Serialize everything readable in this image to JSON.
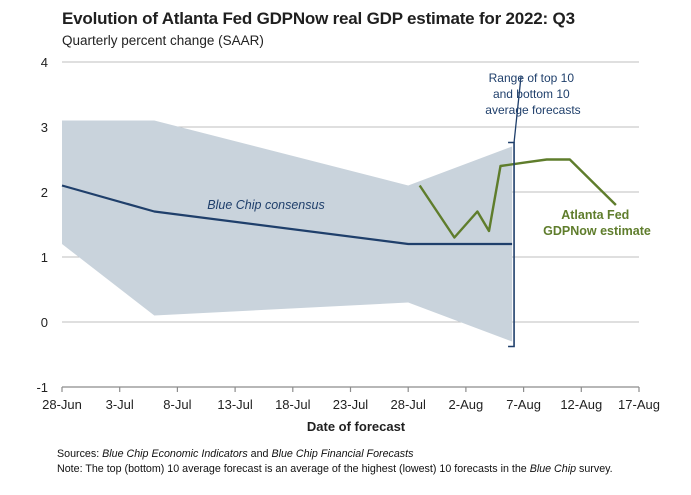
{
  "chart_data": {
    "type": "line",
    "title": "Evolution of Atlanta Fed GDPNow real GDP estimate for 2022: Q3",
    "subtitle": "Quarterly percent change (SAAR)",
    "xlabel": "Date of forecast",
    "ylabel": "",
    "ylim": [
      -1,
      4
    ],
    "yticks": [
      "4",
      "3",
      "2",
      "1",
      "0",
      "-1"
    ],
    "xlim": [
      0,
      50
    ],
    "xticks": [
      {
        "label": "28-Jun",
        "day": 0
      },
      {
        "label": "3-Jul",
        "day": 5
      },
      {
        "label": "8-Jul",
        "day": 10
      },
      {
        "label": "13-Jul",
        "day": 15
      },
      {
        "label": "18-Jul",
        "day": 20
      },
      {
        "label": "23-Jul",
        "day": 25
      },
      {
        "label": "28-Jul",
        "day": 30
      },
      {
        "label": "2-Aug",
        "day": 35
      },
      {
        "label": "7-Aug",
        "day": 40
      },
      {
        "label": "12-Aug",
        "day": 45
      },
      {
        "label": "17-Aug",
        "day": 50
      }
    ],
    "range_band": {
      "name": "Range of top 10 and bottom 10 average forecasts",
      "upper": [
        {
          "day": 0,
          "value": 3.1
        },
        {
          "day": 8,
          "value": 3.1
        },
        {
          "day": 30,
          "value": 2.1
        },
        {
          "day": 39,
          "value": 2.7
        }
      ],
      "lower": [
        {
          "day": 0,
          "value": 1.2
        },
        {
          "day": 8,
          "value": 0.1
        },
        {
          "day": 30,
          "value": 0.3
        },
        {
          "day": 39,
          "value": -0.3
        }
      ]
    },
    "series": [
      {
        "name": "Blue Chip consensus",
        "color": "#1f3f6b",
        "points": [
          {
            "day": 0,
            "value": 2.1
          },
          {
            "day": 8,
            "value": 1.7
          },
          {
            "day": 30,
            "value": 1.2
          },
          {
            "day": 39,
            "value": 1.2
          }
        ]
      },
      {
        "name": "Atlanta Fed GDPNow estimate",
        "color": "#5f7d2c",
        "points": [
          {
            "day": 31,
            "value": 2.1
          },
          {
            "day": 34,
            "value": 1.3
          },
          {
            "day": 36,
            "value": 1.7
          },
          {
            "day": 37,
            "value": 1.4
          },
          {
            "day": 38,
            "value": 2.4
          },
          {
            "day": 40,
            "value": 2.45
          },
          {
            "day": 42,
            "value": 2.5
          },
          {
            "day": 44,
            "value": 2.5
          },
          {
            "day": 48,
            "value": 1.8
          }
        ]
      }
    ],
    "annotations": {
      "range_label": [
        "Range of top 10",
        "and bottom 10",
        "average forecasts"
      ],
      "blue_chip_label": "Blue Chip consensus",
      "gdpnow_label": [
        "Atlanta Fed",
        "GDPNow estimate"
      ]
    },
    "colors": {
      "band": "#c9d3dc",
      "blue": "#1f3f6b",
      "green": "#5f7d2c",
      "grid": "#bfbfbf",
      "axis": "#8c8c8c"
    }
  },
  "notes": {
    "sources_prefix": "Sources: ",
    "sources_italic_1": "Blue Chip Economic Indicators",
    "sources_mid": " and ",
    "sources_italic_2": "Blue Chip Financial Forecasts",
    "note_prefix": "Note: The top (bottom) 10 average forecast is an average of the highest (lowest) 10 forecasts in the ",
    "note_italic": "Blue Chip",
    "note_suffix": " survey."
  }
}
